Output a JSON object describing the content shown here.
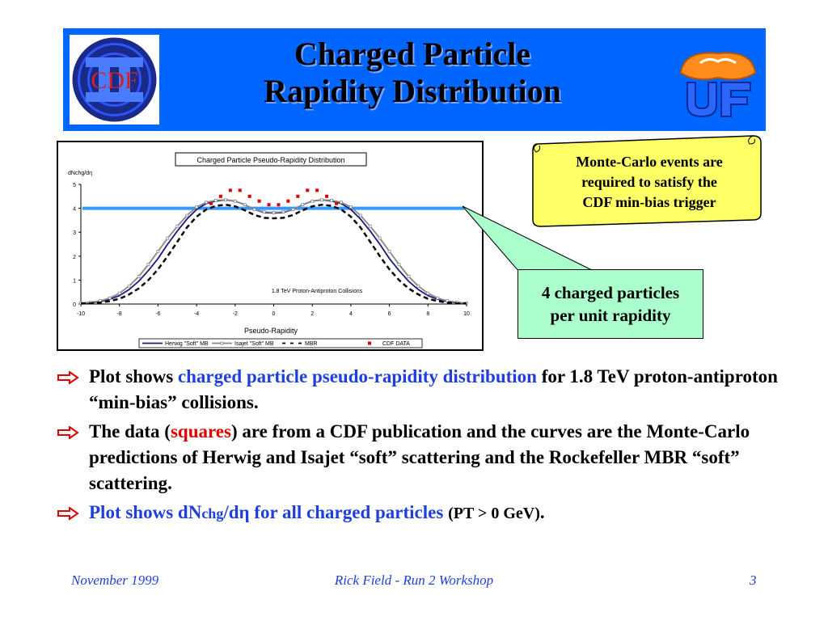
{
  "slide": {
    "title_line1": "Charged Particle",
    "title_line2": "Rapidity Distribution",
    "cdf_logo_text": "CDF",
    "callout_mc": [
      "Monte-Carlo events are",
      "required to satisfy the",
      "CDF min-bias trigger"
    ],
    "callout_4": [
      "4 charged particles",
      "per unit rapidity"
    ],
    "bullets": [
      {
        "parts": [
          {
            "t": "Plot shows ",
            "c": "black"
          },
          {
            "t": "charged particle pseudo-rapidity distribution",
            "c": "blue"
          },
          {
            "t": " for 1.8 TeV proton-antiproton “min-bias” collisions.",
            "c": "black"
          }
        ]
      },
      {
        "parts": [
          {
            "t": "The data (",
            "c": "black"
          },
          {
            "t": "squares",
            "c": "red"
          },
          {
            "t": ") are from a CDF publication and the curves are the Monte-Carlo predictions of Herwig and Isajet “soft” scattering and the Rockefeller MBR “soft” scattering.",
            "c": "black"
          }
        ]
      },
      {
        "parts": [
          {
            "t": "Plot shows dN",
            "c": "blue"
          },
          {
            "t": "chg",
            "c": "blue-sub"
          },
          {
            "t": "/dη for all charged particles ",
            "c": "blue"
          },
          {
            "t": "(PT > 0 GeV)",
            "c": "black-small"
          },
          {
            "t": ".",
            "c": "black"
          }
        ]
      }
    ],
    "footer": {
      "left": "November 1999",
      "center": "Rick Field - Run 2 Workshop",
      "right": "3"
    }
  },
  "colors": {
    "banner": "#0066ff",
    "accent_blue": "#1f3fdd",
    "data_red": "#e00000",
    "callout_yellow": "#ffff66",
    "callout_green": "#aaffcc",
    "ref_line": "#3399ff"
  },
  "chart_data": {
    "type": "line",
    "title": "Charged Particle Pseudo-Rapidity Distribution",
    "ylabel": "dNchg/dη",
    "xlabel": "Pseudo-Rapidity",
    "annotation": "1.8 TeV  Proton-Antiproton Collisions",
    "xlim": [
      -10,
      10
    ],
    "ylim": [
      0,
      5
    ],
    "xticks": [
      -10,
      -8,
      -6,
      -4,
      -2,
      0,
      2,
      4,
      6,
      8,
      10
    ],
    "yticks": [
      0,
      1,
      2,
      3,
      4,
      5
    ],
    "legend_position": "bottom",
    "reference_line": {
      "y": 4
    },
    "series": [
      {
        "name": "Herwig \"Soft\" MB",
        "color": "#1a1a80",
        "style": "solid",
        "x": [
          -10,
          -9.5,
          -9,
          -8.5,
          -8,
          -7.5,
          -7,
          -6.5,
          -6,
          -5.5,
          -5,
          -4.5,
          -4,
          -3.5,
          -3,
          -2.5,
          -2,
          -1.5,
          -1,
          -0.5,
          0,
          0.5,
          1,
          1.5,
          2,
          2.5,
          3,
          3.5,
          4,
          4.5,
          5,
          5.5,
          6,
          6.5,
          7,
          7.5,
          8,
          8.5,
          9,
          9.5,
          10
        ],
        "y": [
          0.03,
          0.05,
          0.1,
          0.2,
          0.35,
          0.6,
          0.95,
          1.4,
          1.9,
          2.5,
          3.05,
          3.55,
          3.95,
          4.2,
          4.3,
          4.35,
          4.3,
          4.15,
          3.95,
          3.82,
          3.8,
          3.82,
          3.95,
          4.15,
          4.3,
          4.35,
          4.3,
          4.2,
          3.95,
          3.55,
          3.05,
          2.5,
          1.9,
          1.4,
          0.95,
          0.6,
          0.35,
          0.2,
          0.1,
          0.05,
          0.03
        ]
      },
      {
        "name": "Isajet \"Soft\" MB",
        "color": "#888888",
        "style": "solid-markers",
        "x": [
          -10,
          -9.5,
          -9,
          -8.5,
          -8,
          -7.5,
          -7,
          -6.5,
          -6,
          -5.5,
          -5,
          -4.5,
          -4,
          -3.5,
          -3,
          -2.5,
          -2,
          -1.5,
          -1,
          -0.5,
          0,
          0.5,
          1,
          1.5,
          2,
          2.5,
          3,
          3.5,
          4,
          4.5,
          5,
          5.5,
          6,
          6.5,
          7,
          7.5,
          8,
          8.5,
          9,
          9.5,
          10
        ],
        "y": [
          0.04,
          0.07,
          0.13,
          0.25,
          0.45,
          0.75,
          1.15,
          1.65,
          2.2,
          2.75,
          3.25,
          3.7,
          4.05,
          4.25,
          4.33,
          4.35,
          4.3,
          4.15,
          3.95,
          3.85,
          3.82,
          3.85,
          3.95,
          4.15,
          4.3,
          4.35,
          4.33,
          4.25,
          4.05,
          3.7,
          3.25,
          2.75,
          2.2,
          1.65,
          1.15,
          0.75,
          0.45,
          0.25,
          0.13,
          0.07,
          0.04
        ]
      },
      {
        "name": "MBR",
        "color": "#000000",
        "style": "dashed",
        "x": [
          -10,
          -9.5,
          -9,
          -8.5,
          -8,
          -7.5,
          -7,
          -6.5,
          -6,
          -5.5,
          -5,
          -4.5,
          -4,
          -3.5,
          -3,
          -2.5,
          -2,
          -1.5,
          -1,
          -0.5,
          0,
          0.5,
          1,
          1.5,
          2,
          2.5,
          3,
          3.5,
          4,
          4.5,
          5,
          5.5,
          6,
          6.5,
          7,
          7.5,
          8,
          8.5,
          9,
          9.5,
          10
        ],
        "y": [
          0.02,
          0.03,
          0.06,
          0.12,
          0.22,
          0.4,
          0.65,
          1.0,
          1.45,
          2.0,
          2.6,
          3.2,
          3.65,
          3.95,
          4.1,
          4.15,
          4.08,
          3.92,
          3.72,
          3.6,
          3.58,
          3.6,
          3.72,
          3.92,
          4.08,
          4.15,
          4.1,
          3.95,
          3.65,
          3.2,
          2.6,
          2.0,
          1.45,
          1.0,
          0.65,
          0.4,
          0.22,
          0.12,
          0.06,
          0.03,
          0.02
        ]
      },
      {
        "name": "CDF DATA",
        "color": "#e00000",
        "style": "markers",
        "x": [
          -3.25,
          -2.75,
          -2.25,
          -1.75,
          -1.25,
          -0.75,
          -0.25,
          0.25,
          0.75,
          1.25,
          1.75,
          2.25,
          2.75,
          3.25
        ],
        "y": [
          4.2,
          4.5,
          4.75,
          4.75,
          4.5,
          4.3,
          4.15,
          4.15,
          4.3,
          4.5,
          4.75,
          4.75,
          4.5,
          4.2
        ]
      }
    ]
  }
}
